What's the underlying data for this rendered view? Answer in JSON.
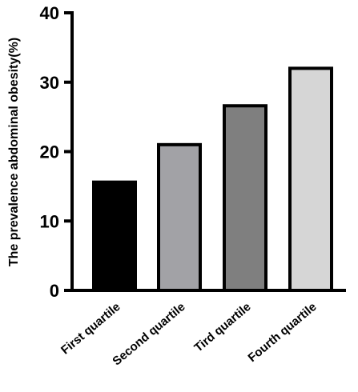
{
  "chart_data": {
    "type": "bar",
    "categories": [
      "First quartile",
      "Second quartile",
      "Tird quartile",
      "Fourth quartile"
    ],
    "values": [
      15.6,
      21.0,
      26.6,
      32.0
    ],
    "bar_colors": [
      "#000000",
      "#a2a2a6",
      "#7f7f7f",
      "#d6d6d6"
    ],
    "ylabel": "The prevalence abdominal obesity(%)",
    "ylim": [
      0,
      40
    ],
    "yticks": [
      0,
      10,
      20,
      30,
      40
    ],
    "title": "",
    "xlabel": "",
    "grid": false,
    "legend": "none"
  }
}
